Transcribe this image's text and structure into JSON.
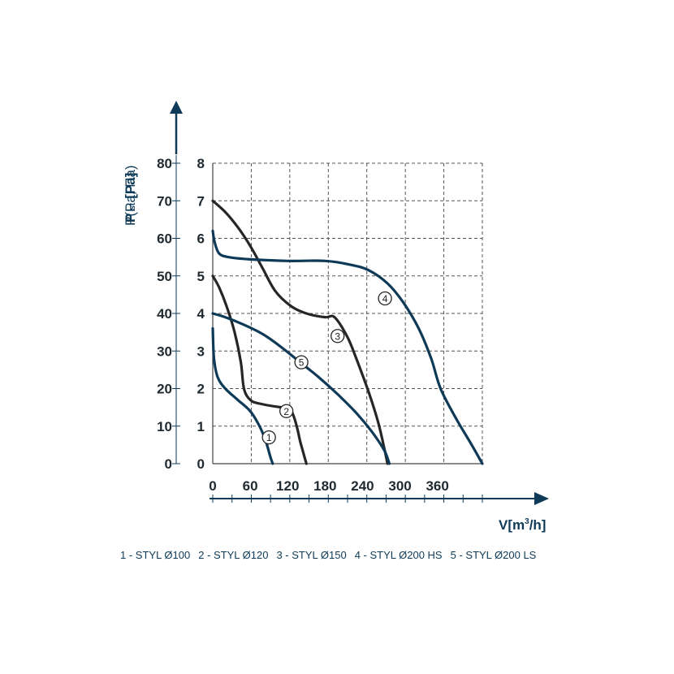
{
  "chart_data": {
    "type": "line",
    "y_outer_label": "P st [Pa]",
    "y_outer_label_parts": {
      "p": "P",
      "sub": "st",
      "unit": "[Pa]"
    },
    "y_inner_label": "P(Pa, Па)",
    "x_label": "V[m³/h]",
    "x_label_parts": {
      "v": "V[m",
      "sup": "3",
      "tail": "/h]"
    },
    "x_ticks": [
      "0",
      "60",
      "120",
      "180",
      "240",
      "300",
      "360"
    ],
    "y_outer_ticks": [
      "0",
      "10",
      "20",
      "30",
      "40",
      "50",
      "60",
      "70",
      "80"
    ],
    "y_inner_ticks": [
      "0",
      "1",
      "2",
      "3",
      "4",
      "5",
      "6",
      "7",
      "8"
    ],
    "xlim": [
      0,
      432
    ],
    "ylim": [
      0,
      80
    ],
    "grid": true,
    "series": [
      {
        "name": "1 - STYL Ø100",
        "marker": "1",
        "color": "#0e3a57",
        "x": [
          0,
          2,
          8,
          20,
          40,
          60,
          75,
          85,
          92,
          96
        ],
        "y": [
          36,
          28,
          23,
          20,
          17,
          14,
          10,
          6,
          2,
          0
        ]
      },
      {
        "name": "2 - STYL Ø120",
        "marker": "2",
        "color": "#262626",
        "x": [
          0,
          10,
          22,
          35,
          45,
          50,
          60,
          75,
          110,
          120,
          126,
          131,
          136,
          140,
          145,
          150
        ],
        "y": [
          50,
          47,
          42,
          35,
          27,
          20,
          17,
          16,
          15,
          15,
          14,
          12,
          9,
          6,
          3,
          0
        ]
      },
      {
        "name": "3 - STYL Ø150",
        "marker": "3",
        "color": "#262626",
        "x": [
          0,
          20,
          40,
          60,
          80,
          100,
          125,
          150,
          180,
          195,
          215,
          230,
          250,
          265,
          275,
          280
        ],
        "y": [
          70,
          67,
          63,
          58,
          52,
          46,
          42,
          40,
          39,
          39,
          34,
          28,
          19,
          11,
          4,
          0
        ]
      },
      {
        "name": "4 - STYL Ø200 HS",
        "marker": "4",
        "color": "#0e3a57",
        "x": [
          0,
          3,
          10,
          25,
          60,
          120,
          180,
          220,
          250,
          280,
          305,
          330,
          350,
          365,
          390,
          415,
          432
        ],
        "y": [
          62,
          59,
          56,
          55,
          54.4,
          54,
          54,
          53,
          51.5,
          48,
          43,
          36,
          28,
          20,
          12,
          5,
          0
        ]
      },
      {
        "name": "5 - STYL Ø200 LS",
        "marker": "5",
        "color": "#0e3a57",
        "x": [
          0,
          20,
          50,
          80,
          110,
          140,
          170,
          200,
          230,
          255,
          275,
          283
        ],
        "y": [
          40,
          39,
          37,
          34.5,
          31,
          27,
          23,
          18.5,
          13.5,
          8.5,
          3.5,
          0
        ]
      }
    ]
  }
}
